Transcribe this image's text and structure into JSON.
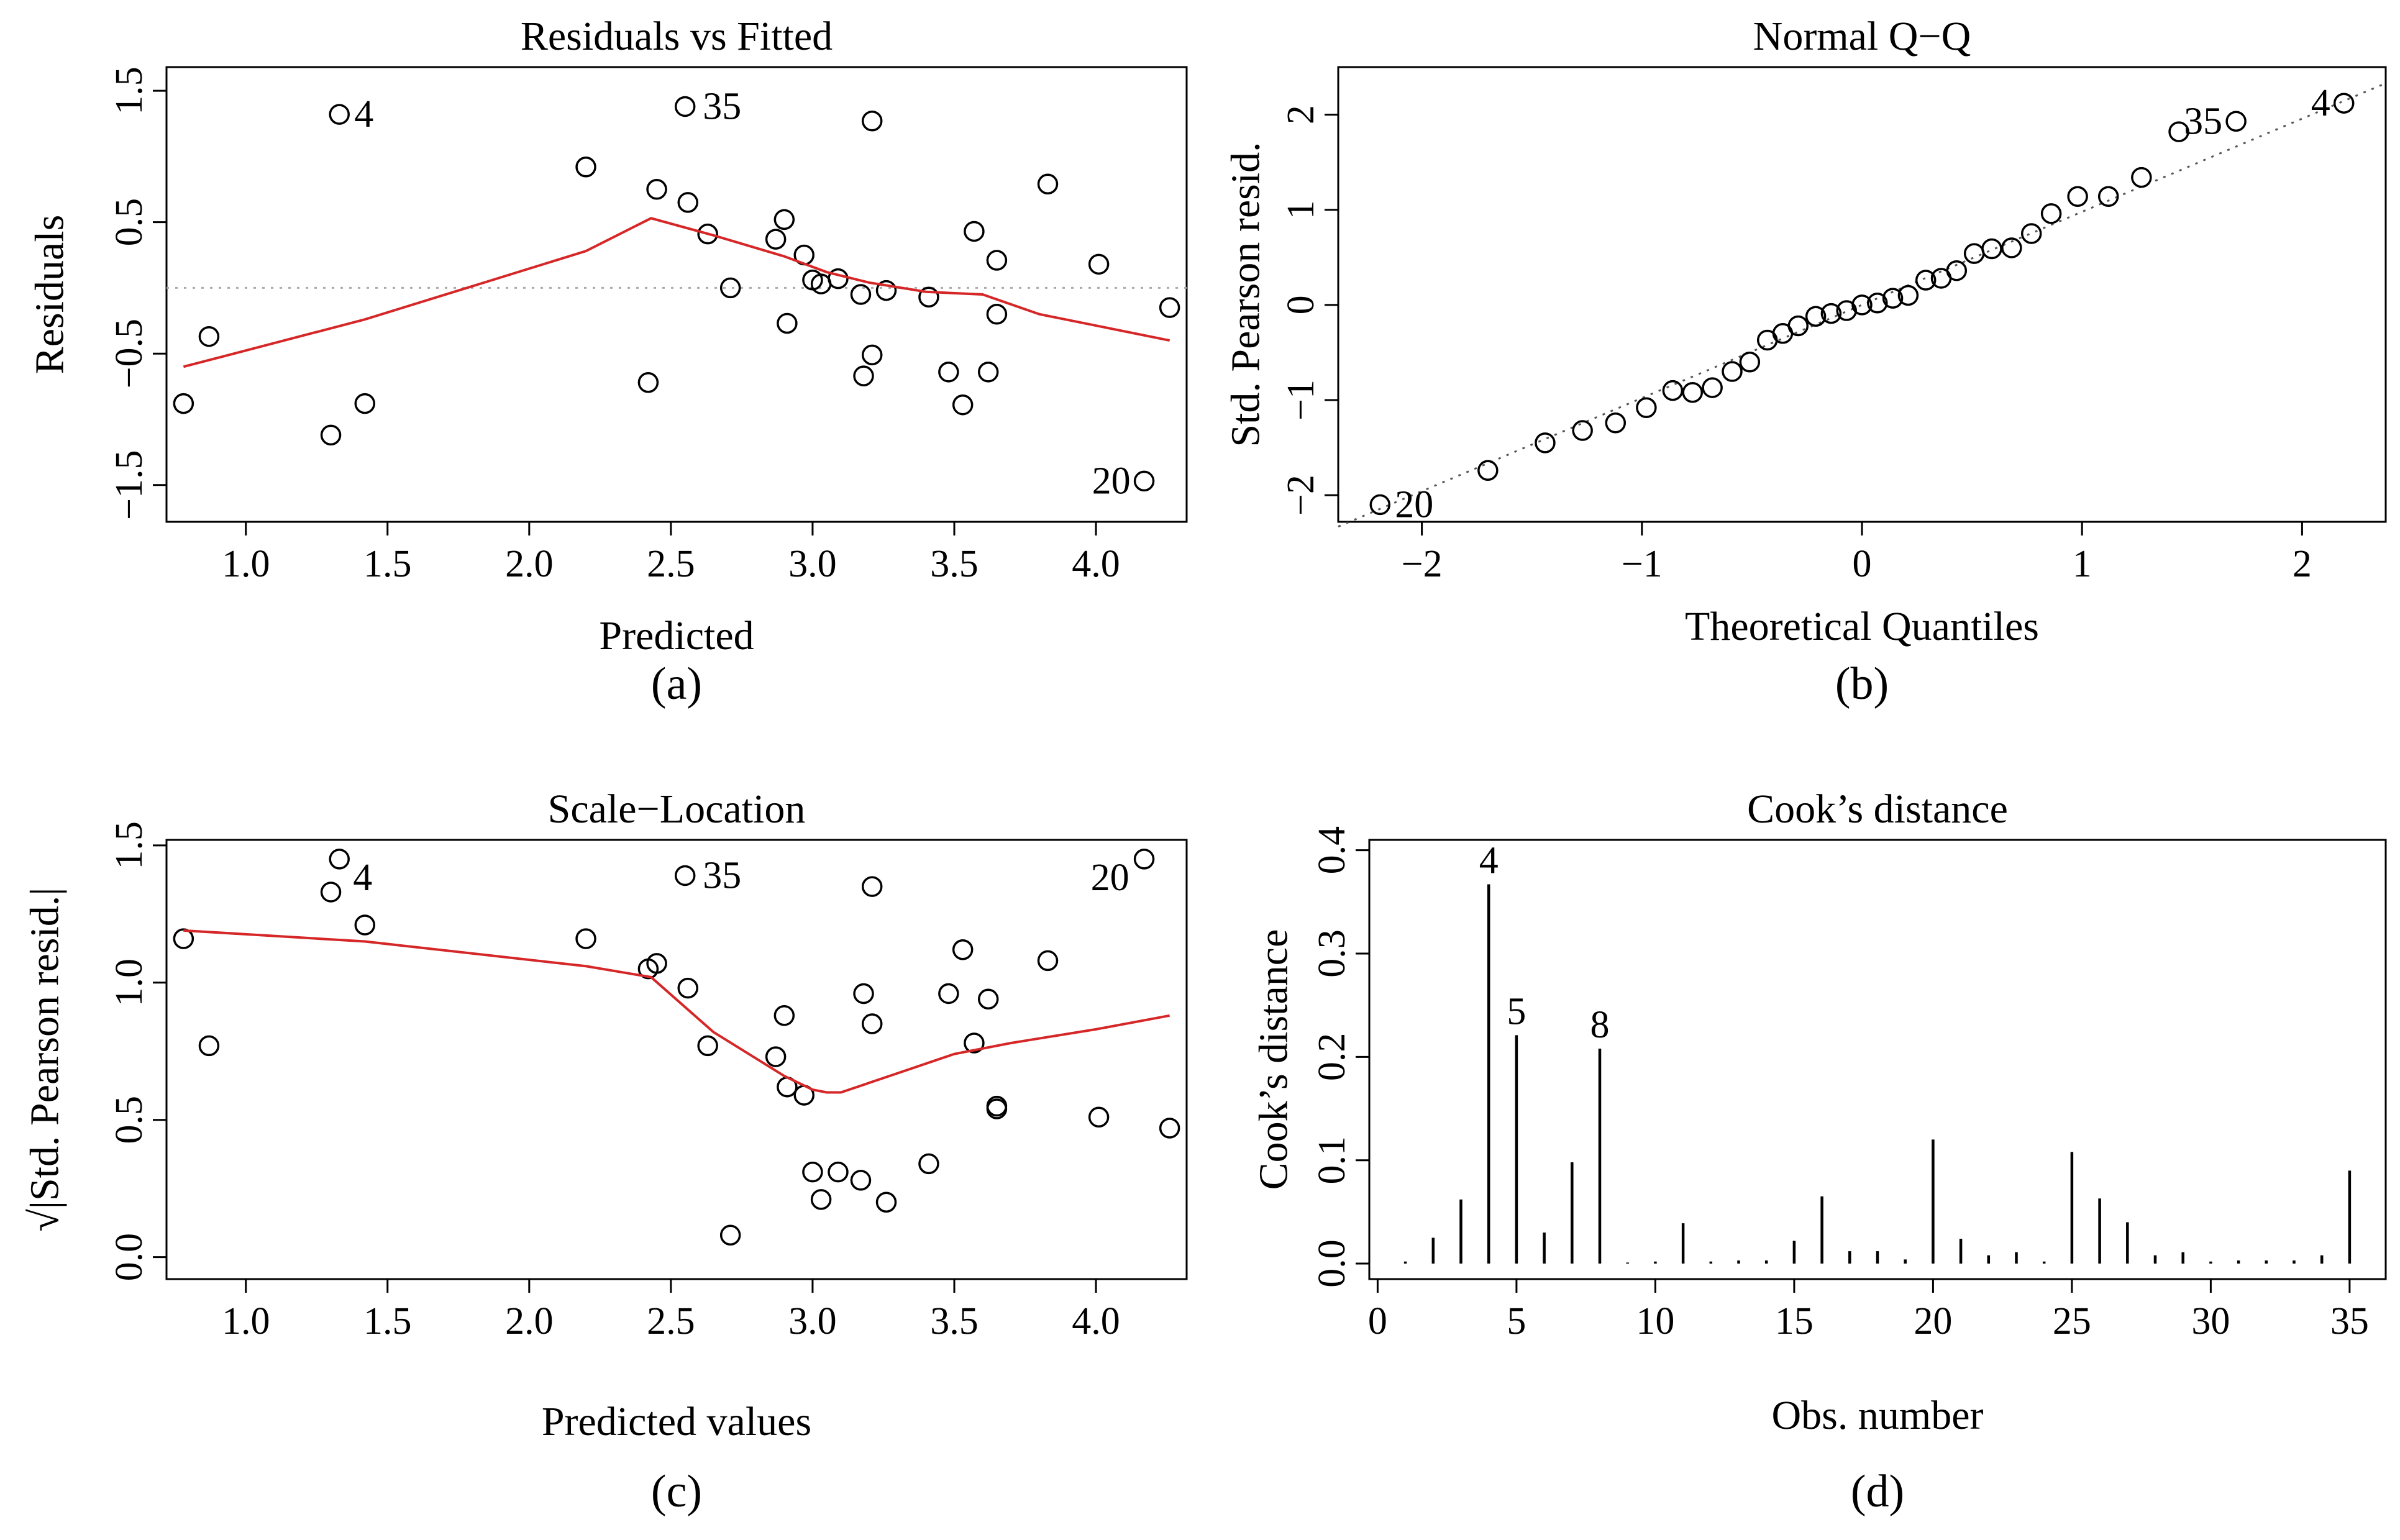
{
  "chart_data": [
    {
      "id": "a",
      "type": "scatter",
      "title": "Residuals vs Fitted",
      "xlabel": "Predicted",
      "ylabel": "Residuals",
      "caption": "(a)",
      "xlim": [
        0.72,
        4.32
      ],
      "ylim": [
        -1.78,
        1.68
      ],
      "xticks": [
        1.0,
        1.5,
        2.0,
        2.5,
        3.0,
        3.5,
        4.0
      ],
      "xtick_labels": [
        "1.0",
        "1.5",
        "2.0",
        "2.5",
        "3.0",
        "3.5",
        "4.0"
      ],
      "yticks": [
        -1.5,
        -0.5,
        0.5,
        1.5
      ],
      "ytick_labels": [
        "−1.5",
        "−0.5",
        "0.5",
        "1.5"
      ],
      "reference_line": {
        "type": "hline",
        "y": 0,
        "style": "dotted",
        "color": "#aaaaaa"
      },
      "points": {
        "x": [
          0.78,
          0.87,
          1.3,
          1.33,
          1.42,
          2.2,
          2.42,
          2.45,
          2.55,
          2.56,
          2.63,
          2.71,
          2.87,
          2.9,
          2.91,
          2.97,
          3.0,
          3.03,
          3.09,
          3.17,
          3.18,
          3.21,
          3.21,
          3.26,
          3.41,
          3.48,
          3.53,
          3.57,
          3.62,
          3.65,
          3.65,
          3.83,
          4.01,
          4.17,
          4.26
        ],
        "y": [
          -0.88,
          -0.37,
          -1.12,
          1.32,
          -0.88,
          0.92,
          -0.72,
          0.75,
          1.38,
          0.65,
          0.41,
          0.0,
          0.37,
          0.52,
          -0.27,
          0.25,
          0.06,
          0.03,
          0.07,
          -0.05,
          -0.67,
          1.27,
          -0.51,
          -0.02,
          -0.07,
          -0.64,
          -0.89,
          0.43,
          -0.64,
          0.21,
          -0.2,
          0.79,
          0.18,
          -1.47,
          -0.15
        ]
      },
      "smooth_line": {
        "color": "#d62728",
        "x": [
          0.78,
          1.42,
          2.2,
          2.43,
          2.65,
          2.9,
          3.05,
          3.2,
          3.4,
          3.6,
          3.8,
          4.26
        ],
        "y": [
          -0.6,
          -0.24,
          0.28,
          0.53,
          0.4,
          0.24,
          0.12,
          0.04,
          -0.03,
          -0.05,
          -0.2,
          -0.4
        ]
      },
      "annotations": [
        {
          "text": "4",
          "x": 1.33,
          "y": 1.32,
          "side": "right"
        },
        {
          "text": "35",
          "x": 2.56,
          "y": 1.38,
          "side": "right"
        },
        {
          "text": "20",
          "x": 4.17,
          "y": -1.47,
          "side": "left"
        }
      ]
    },
    {
      "id": "b",
      "type": "scatter",
      "title": "Normal Q−Q",
      "xlabel": "Theoretical Quantiles",
      "ylabel": "Std. Pearson resid.",
      "caption": "(b)",
      "xlim": [
        -2.38,
        2.38
      ],
      "ylim": [
        -2.28,
        2.5
      ],
      "xticks": [
        -2,
        -1,
        0,
        1,
        2
      ],
      "xtick_labels": [
        "−2",
        "−1",
        "0",
        "1",
        "2"
      ],
      "yticks": [
        -2,
        -1,
        0,
        1,
        2
      ],
      "ytick_labels": [
        "−2",
        "−1",
        "0",
        "1",
        "2"
      ],
      "reference_line": {
        "type": "diag",
        "x": [
          -2.38,
          2.38
        ],
        "y": [
          -2.33,
          2.33
        ],
        "style": "dotted",
        "color": "#555555"
      },
      "points": {
        "x": [
          -2.19,
          -1.7,
          -1.44,
          -1.27,
          -1.12,
          -0.98,
          -0.86,
          -0.77,
          -0.68,
          -0.59,
          -0.51,
          -0.43,
          -0.36,
          -0.29,
          -0.21,
          -0.14,
          -0.07,
          0.0,
          0.07,
          0.14,
          0.21,
          0.29,
          0.36,
          0.43,
          0.51,
          0.59,
          0.68,
          0.77,
          0.86,
          0.98,
          1.12,
          1.27,
          1.44,
          1.7,
          2.19
        ],
        "y": [
          -2.1,
          -1.74,
          -1.45,
          -1.32,
          -1.24,
          -1.08,
          -0.9,
          -0.92,
          -0.87,
          -0.7,
          -0.6,
          -0.37,
          -0.3,
          -0.22,
          -0.12,
          -0.09,
          -0.06,
          0.0,
          0.02,
          0.07,
          0.1,
          0.26,
          0.28,
          0.36,
          0.54,
          0.59,
          0.6,
          0.75,
          0.96,
          1.14,
          1.14,
          1.34,
          1.82,
          1.93,
          2.12
        ]
      },
      "annotations": [
        {
          "text": "20",
          "x": -2.19,
          "y": -2.1,
          "side": "right"
        },
        {
          "text": "35",
          "x": 1.7,
          "y": 1.93,
          "side": "left"
        },
        {
          "text": "4",
          "x": 2.19,
          "y": 2.12,
          "side": "left"
        }
      ]
    },
    {
      "id": "c",
      "type": "scatter",
      "title": "Scale−Location",
      "xlabel": "Predicted values",
      "ylabel": "√|Std. Pearson resid.|",
      "caption": "(c)",
      "xlim": [
        0.72,
        4.32
      ],
      "ylim": [
        -0.08,
        1.52
      ],
      "xticks": [
        1.0,
        1.5,
        2.0,
        2.5,
        3.0,
        3.5,
        4.0
      ],
      "xtick_labels": [
        "1.0",
        "1.5",
        "2.0",
        "2.5",
        "3.0",
        "3.5",
        "4.0"
      ],
      "yticks": [
        0.0,
        0.5,
        1.0,
        1.5
      ],
      "ytick_labels": [
        "0.0",
        "0.5",
        "1.0",
        "1.5"
      ],
      "points": {
        "x": [
          0.78,
          0.87,
          1.3,
          1.33,
          1.42,
          2.2,
          2.42,
          2.45,
          2.55,
          2.56,
          2.63,
          2.71,
          2.87,
          2.9,
          2.91,
          2.97,
          3.0,
          3.03,
          3.09,
          3.17,
          3.18,
          3.21,
          3.21,
          3.26,
          3.41,
          3.48,
          3.53,
          3.57,
          3.62,
          3.65,
          3.65,
          3.83,
          4.01,
          4.17,
          4.26
        ],
        "y": [
          1.16,
          0.77,
          1.33,
          1.45,
          1.21,
          1.16,
          1.05,
          1.07,
          1.39,
          0.98,
          0.77,
          0.08,
          0.73,
          0.88,
          0.62,
          0.59,
          0.31,
          0.21,
          0.31,
          0.28,
          0.96,
          1.35,
          0.85,
          0.2,
          0.34,
          0.96,
          1.12,
          0.78,
          0.94,
          0.55,
          0.54,
          1.08,
          0.51,
          1.45,
          0.47
        ]
      },
      "smooth_line": {
        "color": "#d62728",
        "x": [
          0.78,
          1.42,
          2.2,
          2.43,
          2.65,
          2.9,
          3.0,
          3.05,
          3.1,
          3.3,
          3.5,
          3.7,
          4.0,
          4.26
        ],
        "y": [
          1.19,
          1.15,
          1.06,
          1.02,
          0.82,
          0.66,
          0.61,
          0.6,
          0.6,
          0.67,
          0.74,
          0.78,
          0.83,
          0.88
        ]
      },
      "annotations": [
        {
          "text": "4",
          "x": 1.33,
          "y": 1.45,
          "side": "right-below"
        },
        {
          "text": "35",
          "x": 2.56,
          "y": 1.39,
          "side": "right"
        },
        {
          "text": "20",
          "x": 4.17,
          "y": 1.45,
          "side": "left-below"
        }
      ]
    },
    {
      "id": "d",
      "type": "bar",
      "title": "Cook’s distance",
      "xlabel": "Obs. number",
      "ylabel": "Cook’s distance",
      "caption": "(d)",
      "xlim": [
        -0.3,
        36.3
      ],
      "ylim": [
        -0.015,
        0.41
      ],
      "xticks": [
        0,
        5,
        10,
        15,
        20,
        25,
        30,
        35
      ],
      "xtick_labels": [
        "0",
        "5",
        "10",
        "15",
        "20",
        "25",
        "30",
        "35"
      ],
      "yticks": [
        0.0,
        0.1,
        0.2,
        0.3,
        0.4
      ],
      "ytick_labels": [
        "0.0",
        "0.1",
        "0.2",
        "0.3",
        "0.4"
      ],
      "categories": [
        1,
        2,
        3,
        4,
        5,
        6,
        7,
        8,
        9,
        10,
        11,
        12,
        13,
        14,
        15,
        16,
        17,
        18,
        19,
        20,
        21,
        22,
        23,
        24,
        25,
        26,
        27,
        28,
        29,
        30,
        31,
        32,
        33,
        34,
        35
      ],
      "values": [
        0.002,
        0.025,
        0.062,
        0.367,
        0.221,
        0.03,
        0.098,
        0.208,
        0.001,
        0.002,
        0.039,
        0.002,
        0.003,
        0.003,
        0.022,
        0.065,
        0.012,
        0.012,
        0.004,
        0.12,
        0.024,
        0.008,
        0.011,
        0.002,
        0.108,
        0.063,
        0.04,
        0.008,
        0.011,
        0.002,
        0.003,
        0.003,
        0.003,
        0.008,
        0.09
      ],
      "annotations": [
        {
          "text": "4",
          "x": 4,
          "y": 0.367
        },
        {
          "text": "5",
          "x": 5,
          "y": 0.221
        },
        {
          "text": "8",
          "x": 8,
          "y": 0.208
        }
      ]
    }
  ]
}
